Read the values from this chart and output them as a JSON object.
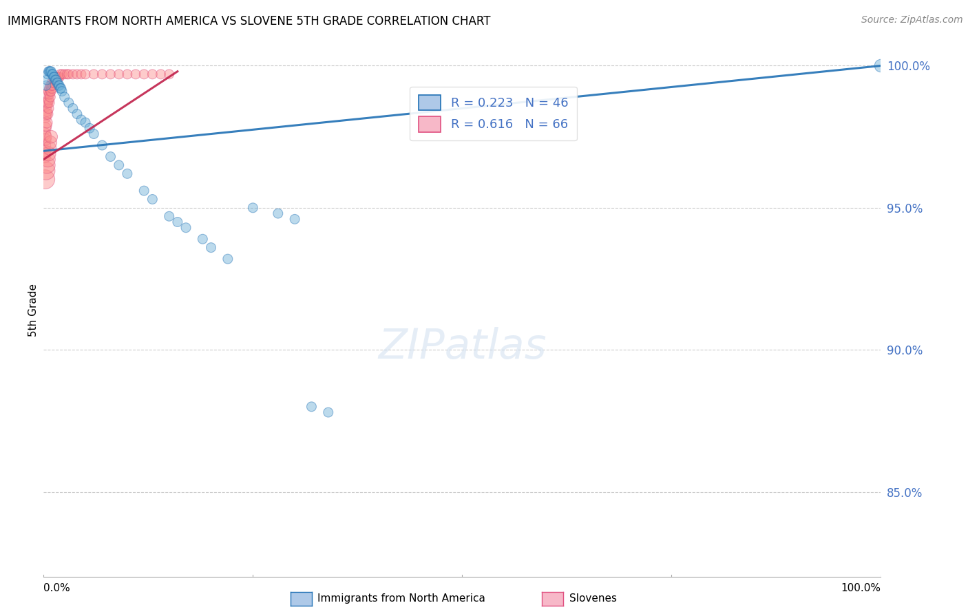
{
  "title": "IMMIGRANTS FROM NORTH AMERICA VS SLOVENE 5TH GRADE CORRELATION CHART",
  "source": "Source: ZipAtlas.com",
  "ylabel": "5th Grade",
  "ylabel_right_labels": [
    "100.0%",
    "95.0%",
    "90.0%",
    "85.0%"
  ],
  "ylabel_right_values": [
    1.0,
    0.95,
    0.9,
    0.85
  ],
  "xlim": [
    0.0,
    1.0
  ],
  "ylim": [
    0.82,
    1.008
  ],
  "legend_blue_label": "R = 0.223   N = 46",
  "legend_pink_label": "R = 0.616   N = 66",
  "legend_bottom_blue": "Immigrants from North America",
  "legend_bottom_pink": "Slovenes",
  "blue_color": "#6baed6",
  "pink_color": "#fc8d8d",
  "blue_line_color": "#2171b5",
  "pink_line_color": "#c0204a",
  "grid_color": "#cccccc",
  "watermark_text": "ZIPatlas",
  "blue_scatter_x": [
    0.003,
    0.004,
    0.005,
    0.006,
    0.007,
    0.008,
    0.009,
    0.01,
    0.011,
    0.012,
    0.013,
    0.014,
    0.015,
    0.016,
    0.017,
    0.018,
    0.019,
    0.02,
    0.021,
    0.022,
    0.025,
    0.03,
    0.035,
    0.04,
    0.045,
    0.05,
    0.055,
    0.06,
    0.07,
    0.08,
    0.09,
    0.1,
    0.12,
    0.13,
    0.15,
    0.16,
    0.17,
    0.19,
    0.2,
    0.22,
    0.25,
    0.28,
    0.3,
    0.32,
    0.34,
    1.0
  ],
  "blue_scatter_y": [
    0.993,
    0.995,
    0.997,
    0.998,
    0.998,
    0.998,
    0.998,
    0.997,
    0.997,
    0.996,
    0.996,
    0.995,
    0.995,
    0.994,
    0.994,
    0.993,
    0.993,
    0.992,
    0.992,
    0.991,
    0.989,
    0.987,
    0.985,
    0.983,
    0.981,
    0.98,
    0.978,
    0.976,
    0.972,
    0.968,
    0.965,
    0.962,
    0.956,
    0.953,
    0.947,
    0.945,
    0.943,
    0.939,
    0.936,
    0.932,
    0.95,
    0.948,
    0.946,
    0.88,
    0.878,
    1.0
  ],
  "blue_scatter_s": [
    20,
    20,
    20,
    20,
    20,
    20,
    20,
    20,
    20,
    20,
    20,
    20,
    20,
    20,
    20,
    20,
    20,
    20,
    20,
    20,
    20,
    20,
    20,
    20,
    20,
    20,
    20,
    20,
    20,
    20,
    20,
    20,
    20,
    20,
    20,
    20,
    20,
    20,
    20,
    20,
    20,
    20,
    20,
    20,
    20,
    35
  ],
  "pink_scatter_x": [
    0.001,
    0.001,
    0.001,
    0.002,
    0.002,
    0.002,
    0.002,
    0.003,
    0.003,
    0.003,
    0.003,
    0.004,
    0.004,
    0.004,
    0.005,
    0.005,
    0.005,
    0.006,
    0.006,
    0.006,
    0.007,
    0.007,
    0.007,
    0.008,
    0.008,
    0.008,
    0.009,
    0.009,
    0.01,
    0.01,
    0.011,
    0.012,
    0.013,
    0.014,
    0.015,
    0.016,
    0.017,
    0.018,
    0.019,
    0.02,
    0.022,
    0.025,
    0.028,
    0.03,
    0.035,
    0.04,
    0.045,
    0.05,
    0.06,
    0.07,
    0.08,
    0.09,
    0.1,
    0.11,
    0.12,
    0.13,
    0.14,
    0.15,
    0.002,
    0.003,
    0.004,
    0.005,
    0.006,
    0.007,
    0.008,
    0.009
  ],
  "pink_scatter_y": [
    0.968,
    0.972,
    0.976,
    0.97,
    0.974,
    0.978,
    0.982,
    0.975,
    0.979,
    0.983,
    0.986,
    0.98,
    0.984,
    0.987,
    0.983,
    0.987,
    0.99,
    0.985,
    0.988,
    0.991,
    0.987,
    0.99,
    0.992,
    0.989,
    0.991,
    0.993,
    0.991,
    0.993,
    0.992,
    0.994,
    0.993,
    0.994,
    0.995,
    0.995,
    0.995,
    0.996,
    0.996,
    0.996,
    0.996,
    0.997,
    0.997,
    0.997,
    0.997,
    0.997,
    0.997,
    0.997,
    0.997,
    0.997,
    0.997,
    0.997,
    0.997,
    0.997,
    0.997,
    0.997,
    0.997,
    0.997,
    0.997,
    0.997,
    0.96,
    0.963,
    0.965,
    0.967,
    0.969,
    0.971,
    0.973,
    0.975
  ],
  "pink_scatter_s": [
    35,
    35,
    35,
    30,
    30,
    30,
    30,
    28,
    28,
    28,
    28,
    26,
    26,
    26,
    24,
    24,
    24,
    23,
    23,
    23,
    22,
    22,
    22,
    22,
    22,
    22,
    21,
    21,
    21,
    21,
    20,
    20,
    20,
    20,
    20,
    20,
    20,
    20,
    20,
    20,
    20,
    20,
    20,
    20,
    20,
    20,
    20,
    20,
    20,
    20,
    20,
    20,
    20,
    20,
    20,
    20,
    20,
    20,
    80,
    70,
    60,
    50,
    45,
    40,
    38,
    36
  ],
  "blue_trend_x": [
    0.0,
    1.0
  ],
  "blue_trend_y": [
    0.97,
    1.0
  ],
  "pink_trend_x": [
    0.0,
    0.16
  ],
  "pink_trend_y": [
    0.967,
    0.998
  ]
}
